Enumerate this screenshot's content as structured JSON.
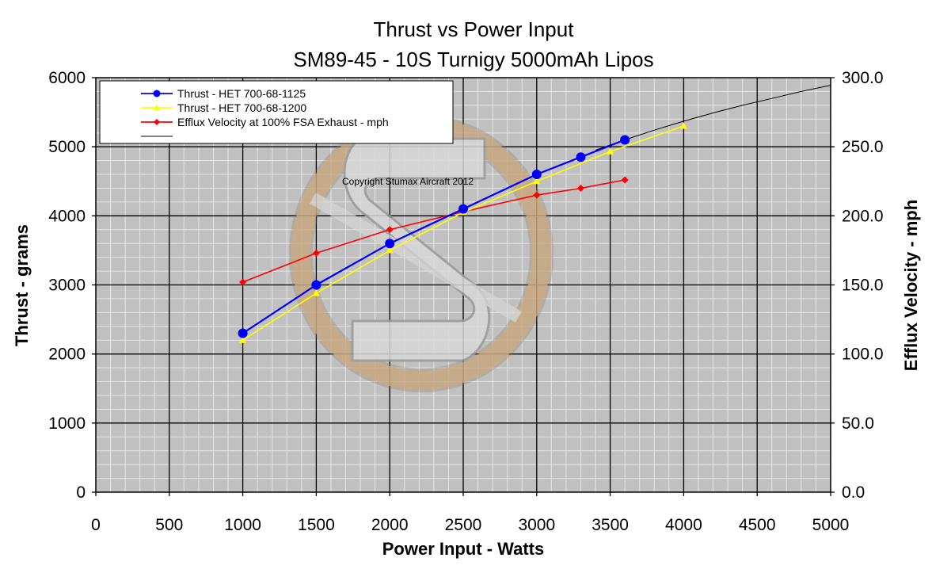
{
  "colors": {
    "plot_background": "#c0c0c0",
    "minor_grid": "#e6e6e6",
    "major_grid": "#000000",
    "series_1125": "#0000ff",
    "series_1200": "#ffff00",
    "series_efflux": "#ff0000",
    "trend": "#000000",
    "watermark_ring": "#c8a882",
    "watermark_s": "#d8d8d8"
  },
  "chart_data": {
    "type": "line",
    "title": "Thrust vs Power Input",
    "subtitle": "SM89-45 - 10S Turnigy 5000mAh Lipos",
    "xlabel": "Power Input - Watts",
    "ylabel": "Thrust - grams",
    "y2label": "Efflux Velocity - mph",
    "xlim": [
      0,
      5000
    ],
    "ylim": [
      0,
      6000
    ],
    "y2lim": [
      0,
      300
    ],
    "x_ticks": [
      "0",
      "500",
      "1000",
      "1500",
      "2000",
      "2500",
      "3000",
      "3500",
      "4000",
      "4500",
      "5000"
    ],
    "y_ticks": [
      "0",
      "1000",
      "2000",
      "3000",
      "4000",
      "5000",
      "6000"
    ],
    "y2_ticks": [
      "0.0",
      "50.0",
      "100.0",
      "150.0",
      "200.0",
      "250.0",
      "300.0"
    ],
    "grid": true,
    "legend_position": "top-left",
    "annotation": "Copyright Stumax Aircraft 2012",
    "series": [
      {
        "name": "Thrust - HET 700-68-1125",
        "axis": "left",
        "marker": "circle",
        "x": [
          1000,
          1500,
          2000,
          2500,
          3000,
          3300,
          3600
        ],
        "y": [
          2300,
          3000,
          3600,
          4100,
          4600,
          4850,
          5100
        ]
      },
      {
        "name": "Thrust - HET 700-68-1200",
        "axis": "left",
        "marker": "triangle",
        "x": [
          1000,
          1500,
          2000,
          2500,
          3000,
          3500,
          4000
        ],
        "y": [
          2200,
          2880,
          3500,
          4050,
          4500,
          4930,
          5300
        ]
      },
      {
        "name": "Efflux Velocity at 100% FSA Exhaust - mph",
        "axis": "right",
        "marker": "diamond",
        "x": [
          1000,
          1500,
          2000,
          2500,
          3000,
          3300,
          3600
        ],
        "y": [
          152,
          173,
          190,
          203,
          215,
          220,
          226
        ]
      },
      {
        "name": "",
        "axis": "left",
        "marker": "none",
        "x": [
          3400,
          3600,
          3800,
          4000,
          4200,
          4400,
          4600,
          4800,
          5000
        ],
        "y": [
          4950,
          5100,
          5240,
          5370,
          5490,
          5600,
          5700,
          5800,
          5890
        ]
      }
    ]
  }
}
